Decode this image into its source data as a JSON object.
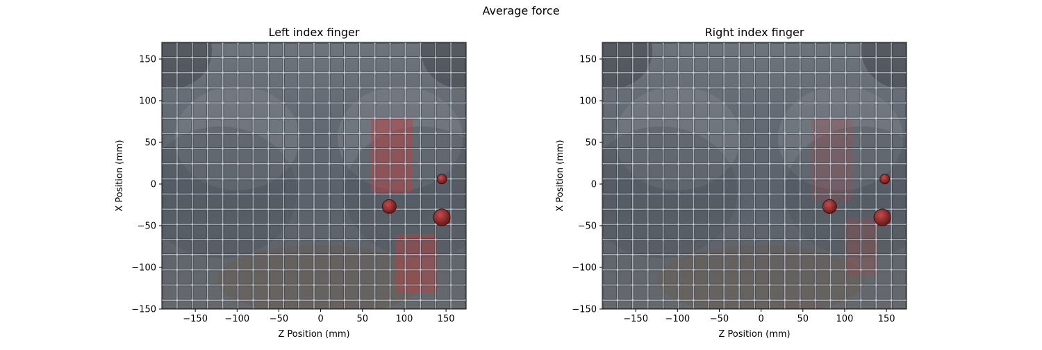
{
  "figure": {
    "title": "Average force"
  },
  "chart_data": [
    {
      "type": "heatmap",
      "title": "Left index finger",
      "xlabel": "Z Position (mm)",
      "ylabel": "X Position (mm)",
      "xlim": [
        -190,
        174
      ],
      "ylim": [
        -150,
        170
      ],
      "xticks": [
        -150,
        -100,
        -50,
        0,
        50,
        100,
        150
      ],
      "yticks": [
        -150,
        -100,
        -50,
        0,
        50,
        100,
        150
      ],
      "xtick_labels": [
        "−150",
        "−100",
        "−50",
        "0",
        "50",
        "100",
        "150"
      ],
      "ytick_labels": [
        "−150",
        "−100",
        "−50",
        "0",
        "50",
        "100",
        "150"
      ],
      "grid": true,
      "background": "grayscale photo of a bra-shaped body scan overlaid by a dark translucent grid",
      "cell_size_mm": 18.2,
      "high_force_regions": [
        {
          "z_range": [
            60,
            110
          ],
          "x_range": [
            -10,
            80
          ],
          "intensity": 0.45
        },
        {
          "z_range": [
            90,
            140
          ],
          "x_range": [
            -130,
            -60
          ],
          "intensity": 0.4
        }
      ],
      "markers": [
        {
          "z": 82,
          "x": -27,
          "size": "medium"
        },
        {
          "z": 145,
          "x": 6,
          "size": "small"
        },
        {
          "z": 145,
          "x": -40,
          "size": "large"
        }
      ],
      "colors": {
        "grid_line": "#e8eef6",
        "force_region": "#c83c3c",
        "marker": "#8b1a1a"
      }
    },
    {
      "type": "heatmap",
      "title": "Right index finger",
      "xlabel": "Z Position (mm)",
      "ylabel": "X Position (mm)",
      "xlim": [
        -190,
        174
      ],
      "ylim": [
        -150,
        170
      ],
      "xticks": [
        -150,
        -100,
        -50,
        0,
        50,
        100,
        150
      ],
      "yticks": [
        -150,
        -100,
        -50,
        0,
        50,
        100,
        150
      ],
      "xtick_labels": [
        "−150",
        "−100",
        "−50",
        "0",
        "50",
        "100",
        "150"
      ],
      "ytick_labels": [
        "−150",
        "−100",
        "−50",
        "0",
        "50",
        "100",
        "150"
      ],
      "grid": true,
      "background": "grayscale photo of a bra-shaped body scan overlaid by a dark translucent grid",
      "cell_size_mm": 18.2,
      "high_force_regions": [
        {
          "z_range": [
            60,
            110
          ],
          "x_range": [
            -20,
            80
          ],
          "intensity": 0.2
        },
        {
          "z_range": [
            100,
            140
          ],
          "x_range": [
            -110,
            -40
          ],
          "intensity": 0.2
        }
      ],
      "markers": [
        {
          "z": 82,
          "x": -27,
          "size": "medium"
        },
        {
          "z": 148,
          "x": 6,
          "size": "small"
        },
        {
          "z": 145,
          "x": -40,
          "size": "large"
        }
      ],
      "colors": {
        "grid_line": "#e8eef6",
        "force_region": "#c83c3c",
        "marker": "#8b1a1a"
      }
    }
  ]
}
